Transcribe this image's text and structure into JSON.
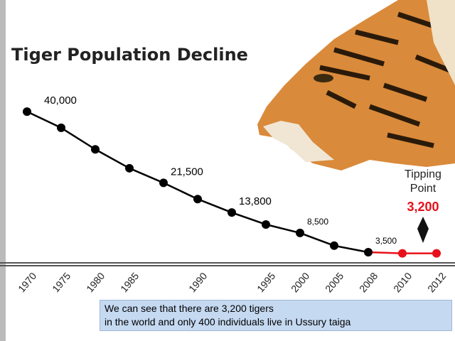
{
  "chart_data": {
    "type": "line",
    "title": "Tiger Population Decline",
    "categories": [
      "1970",
      "1975",
      "1980",
      "1985",
      null,
      "1990",
      null,
      "1995",
      "2000",
      "2005",
      "2008",
      "2010",
      "2012"
    ],
    "values": [
      40000,
      35800,
      30200,
      25300,
      21500,
      17300,
      13800,
      10700,
      8500,
      5200,
      3500,
      3200,
      3200
    ],
    "value_labels": [
      "40,000",
      null,
      null,
      null,
      "21,500",
      null,
      "13,800",
      null,
      "8,500",
      null,
      "3,500",
      null,
      "3,200"
    ],
    "colors": [
      "#000000",
      "#000000",
      "#000000",
      "#000000",
      "#000000",
      "#000000",
      "#000000",
      "#000000",
      "#000000",
      "#000000",
      "#000000",
      "#e8101a",
      "#e8101a"
    ],
    "ylim": [
      0,
      45000
    ],
    "annotation": [
      "Tipping",
      "Point"
    ]
  },
  "caption": [
    "We can see that  there are 3,200 tigers",
    "in the world and only 400 individuals  live in Ussury  taiga"
  ]
}
